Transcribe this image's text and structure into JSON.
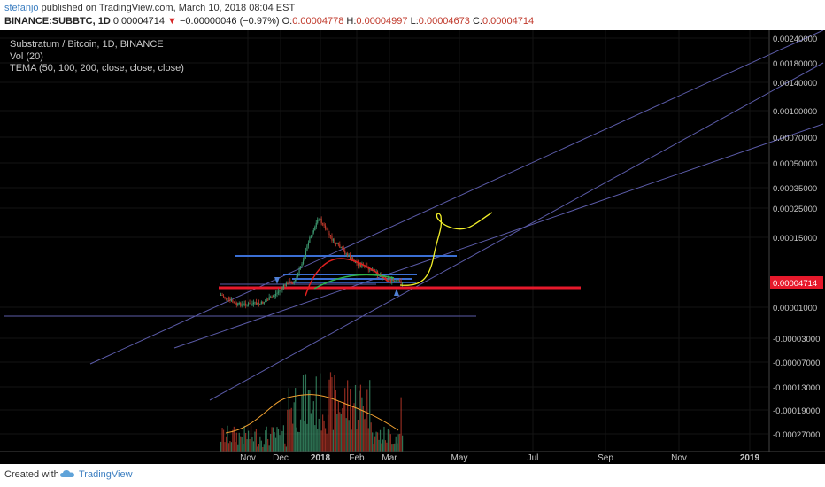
{
  "header": {
    "author": "stefanjo",
    "published_text": " published on TradingView.com, March 10, 2018 08:04 EST",
    "symbol": "BINANCE:SUBBTC, 1D",
    "last": "0.00004714",
    "down_arrow": "▼",
    "change": "−0.00000046 (−0.97%)",
    "open_label": "O:",
    "open": "0.00004778",
    "high_label": "H:",
    "high": "0.00004997",
    "low_label": "L:",
    "low": "0.00004673",
    "close_label": "C:",
    "close": "0.00004714"
  },
  "legend": {
    "title": "Substratum / Bitcoin, 1D, BINANCE",
    "vol": "Vol (20)",
    "tema": "TEMA (50, 100, 200, close, close, close)"
  },
  "footer": {
    "created_with": "Created with",
    "brand": "TradingView"
  },
  "colors": {
    "background": "#000000",
    "up": "#3d9970",
    "down": "#c0392b",
    "support_red": "#e6192b",
    "resistance_blue": "#3b6fd4",
    "trendline": "#5b5ba8",
    "projection_yellow": "#f2ef29",
    "tema_red": "#e02020",
    "tema_green": "#2db34a",
    "vol_ma": "#f0a030",
    "price_badge": "#e6192b"
  },
  "chart_data": {
    "type": "candlestick",
    "title": "Substratum / Bitcoin, 1D, BINANCE",
    "interval": "1D",
    "x_ticks": [
      "Nov",
      "Dec",
      "2018",
      "Feb",
      "Mar",
      "May",
      "Jul",
      "Sep",
      "Nov",
      "2019"
    ],
    "y_ticks": [
      "0.00240000",
      "0.00180000",
      "0.00140000",
      "0.00100000",
      "0.00070000",
      "0.00050000",
      "0.00035000",
      "0.00025000",
      "0.00015000",
      "0.00001000",
      "-0.00003000",
      "-0.00007000",
      "-0.00013000",
      "-0.00019000",
      "-0.00027000"
    ],
    "last_price": "0.00004714",
    "approx_price_path": [
      {
        "date": "2017-10-20",
        "close": 4e-05
      },
      {
        "date": "2017-11-01",
        "close": 2e-05
      },
      {
        "date": "2017-11-20",
        "close": 2.2e-05
      },
      {
        "date": "2017-12-01",
        "close": 4e-05
      },
      {
        "date": "2017-12-15",
        "close": 5e-05
      },
      {
        "date": "2017-12-25",
        "close": 0.00012
      },
      {
        "date": "2018-01-04",
        "close": 0.00022
      },
      {
        "date": "2018-01-15",
        "close": 0.00014
      },
      {
        "date": "2018-02-01",
        "close": 0.0001
      },
      {
        "date": "2018-02-20",
        "close": 7.5e-05
      },
      {
        "date": "2018-03-10",
        "close": 4.714e-05
      }
    ],
    "horizontal_levels": [
      {
        "color": "red",
        "price": 4.714e-05
      },
      {
        "color": "blue",
        "price": 0.00011
      },
      {
        "color": "blue",
        "price": 7.5e-05
      },
      {
        "color": "blue",
        "price": 6e-05
      }
    ],
    "volume_ma_length": 20
  }
}
